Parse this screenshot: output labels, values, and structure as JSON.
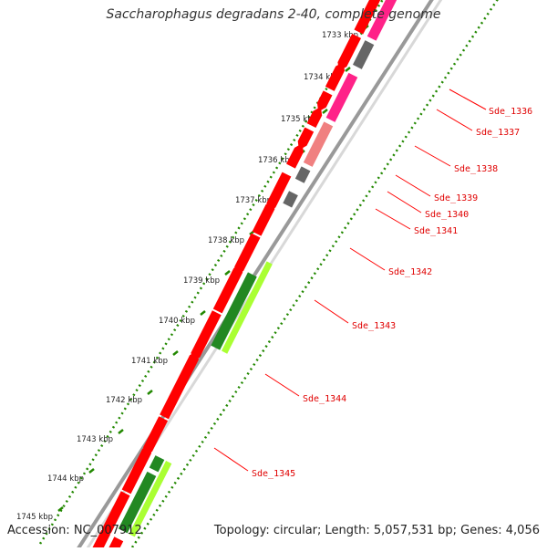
{
  "title": "Saccharophagus degradans 2-40, complete genome",
  "footer": {
    "accession": "Accession: NC_007912",
    "summary": "Topology: circular; Length: 5,057,531 bp; Genes: 4,056"
  },
  "scale_labels": [
    "1733 kbp",
    "1734 kbp",
    "1735 kbp",
    "1736 kbp",
    "1737 kbp",
    "1738 kbp",
    "1739 kbp",
    "1740 kbp",
    "1741 kbp",
    "1742 kbp",
    "1743 kbp",
    "1744 kbp",
    "1745 kbp"
  ],
  "genes": [
    {
      "name": "Sde_1336"
    },
    {
      "name": "Sde_1337"
    },
    {
      "name": "Sde_1338"
    },
    {
      "name": "Sde_1339"
    },
    {
      "name": "Sde_1340"
    },
    {
      "name": "Sde_1341"
    },
    {
      "name": "Sde_1342"
    },
    {
      "name": "Sde_1343"
    },
    {
      "name": "Sde_1344"
    },
    {
      "name": "Sde_1345"
    }
  ],
  "colors": {
    "cds": "#ff0000",
    "pink": "#ff2288",
    "salmon": "#f08080",
    "gray": "#666666",
    "lime": "#aaff33",
    "darkgreen": "#228822",
    "tick": "#228800",
    "backbone": "#999999"
  }
}
